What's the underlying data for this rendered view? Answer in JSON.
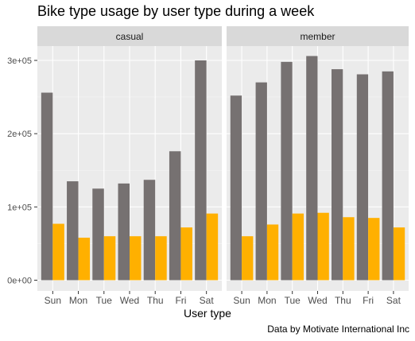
{
  "chart_data": {
    "type": "bar",
    "title": "Bike type usage by user type during a week",
    "xlabel": "User type",
    "ylabel": "",
    "caption": "Data by Motivate International Inc",
    "categories": [
      "Sun",
      "Mon",
      "Tue",
      "Wed",
      "Thu",
      "Fri",
      "Sat"
    ],
    "ylim": [
      0,
      330000
    ],
    "yticks": [
      {
        "value": 0,
        "label": "0e+00"
      },
      {
        "value": 100000,
        "label": "1e+05"
      },
      {
        "value": 200000,
        "label": "2e+05"
      },
      {
        "value": 300000,
        "label": "3e+05"
      }
    ],
    "grid": true,
    "legend": "none",
    "panels": [
      {
        "label": "casual",
        "series": [
          {
            "color": "#767171",
            "values": [
              256000,
              135000,
              125000,
              132000,
              137000,
              176000,
              300000
            ]
          },
          {
            "color": "#FFB000",
            "values": [
              77000,
              58000,
              60000,
              60000,
              60000,
              72000,
              91000
            ]
          }
        ]
      },
      {
        "label": "member",
        "series": [
          {
            "color": "#767171",
            "values": [
              252000,
              270000,
              298000,
              306000,
              288000,
              281000,
              285000
            ]
          },
          {
            "color": "#FFB000",
            "values": [
              60000,
              76000,
              91000,
              92000,
              86000,
              85000,
              72000
            ]
          }
        ]
      }
    ],
    "colors": {
      "panel_background": "#EBEBEB",
      "strip_background": "#D9D9D9",
      "grid_major": "#FFFFFF",
      "tick_text": "#4D4D4D"
    }
  }
}
